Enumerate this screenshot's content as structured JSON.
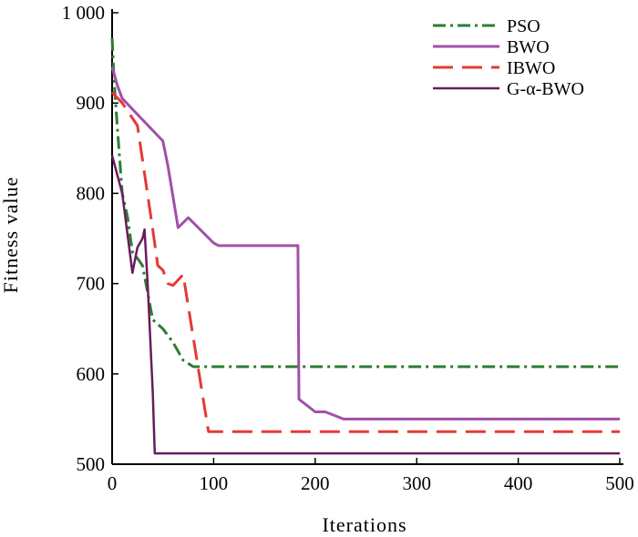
{
  "chart_data": {
    "type": "line",
    "xlabel": "Iterations",
    "ylabel": "Fitness value",
    "xlim": [
      0,
      500
    ],
    "ylim": [
      500,
      1000
    ],
    "x_ticks": [
      0,
      100,
      200,
      300,
      400,
      500
    ],
    "y_ticks": [
      500,
      600,
      700,
      800,
      900,
      1000
    ],
    "y_tick_labels": [
      "500",
      "600",
      "700",
      "800",
      "900",
      "1 000"
    ],
    "grid": false,
    "legend_position": "top-right",
    "series": [
      {
        "name": "PSO",
        "color": "#2e7d32",
        "dash": "14 5 3 5",
        "width": 3,
        "points": [
          [
            0,
            972
          ],
          [
            2,
            925
          ],
          [
            5,
            875
          ],
          [
            10,
            800
          ],
          [
            15,
            775
          ],
          [
            20,
            735
          ],
          [
            25,
            728
          ],
          [
            30,
            720
          ],
          [
            35,
            690
          ],
          [
            40,
            660
          ],
          [
            50,
            650
          ],
          [
            60,
            635
          ],
          [
            70,
            615
          ],
          [
            80,
            608
          ],
          [
            100,
            608
          ],
          [
            200,
            608
          ],
          [
            300,
            608
          ],
          [
            400,
            608
          ],
          [
            500,
            608
          ]
        ]
      },
      {
        "name": "BWO",
        "color": "#a050a8",
        "dash": "",
        "width": 3,
        "points": [
          [
            0,
            940
          ],
          [
            5,
            920
          ],
          [
            10,
            905
          ],
          [
            50,
            858
          ],
          [
            55,
            830
          ],
          [
            65,
            762
          ],
          [
            75,
            773
          ],
          [
            100,
            745
          ],
          [
            105,
            742
          ],
          [
            183,
            742
          ],
          [
            184,
            572
          ],
          [
            200,
            558
          ],
          [
            210,
            558
          ],
          [
            228,
            550
          ],
          [
            500,
            550
          ]
        ]
      },
      {
        "name": "IBWO",
        "color": "#e53935",
        "dash": "22 10",
        "width": 3,
        "points": [
          [
            0,
            912
          ],
          [
            10,
            900
          ],
          [
            25,
            875
          ],
          [
            40,
            760
          ],
          [
            45,
            720
          ],
          [
            50,
            715
          ],
          [
            55,
            700
          ],
          [
            60,
            698
          ],
          [
            70,
            710
          ],
          [
            80,
            640
          ],
          [
            90,
            570
          ],
          [
            95,
            536
          ],
          [
            500,
            536
          ]
        ]
      },
      {
        "name": "G-α-BWO",
        "color": "#6a1b5e",
        "dash": "",
        "width": 2.5,
        "points": [
          [
            0,
            842
          ],
          [
            10,
            800
          ],
          [
            20,
            712
          ],
          [
            25,
            740
          ],
          [
            30,
            750
          ],
          [
            32,
            760
          ],
          [
            35,
            700
          ],
          [
            40,
            580
          ],
          [
            42,
            512
          ],
          [
            500,
            512
          ]
        ]
      }
    ]
  }
}
